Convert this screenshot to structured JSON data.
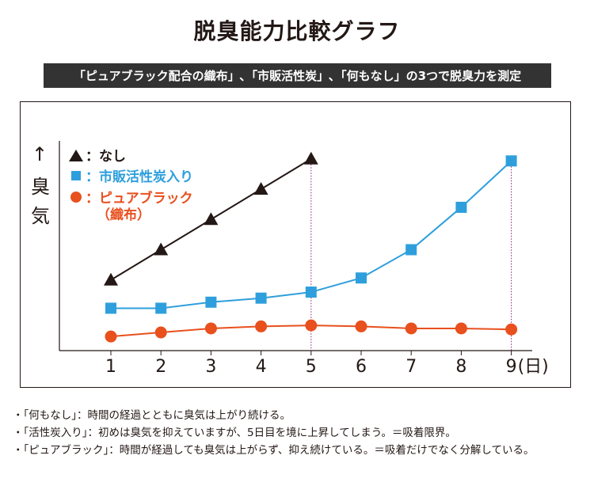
{
  "title": "脱臭能力比較グラフ",
  "subtitle": "「ピュアブラック配合の織布」､「市販活性炭」､「何もなし」の3つで脱臭力を測定",
  "chart_data": {
    "type": "line",
    "x": [
      1,
      2,
      3,
      4,
      5,
      6,
      7,
      8,
      9
    ],
    "xlabel": "(日)",
    "ylabel": "臭気",
    "y_arrow": "↑",
    "y_units": "relative (no scale printed)",
    "ylim": [
      0,
      100
    ],
    "grid": false,
    "legend_position": "top-left",
    "series": [
      {
        "name": "：なし",
        "color": "#231815",
        "marker": "triangle",
        "x": [
          1,
          2,
          3,
          4,
          5
        ],
        "values": [
          35,
          50,
          65,
          80,
          95
        ]
      },
      {
        "name": "：市販活性炭入り",
        "color": "#2e9fdc",
        "marker": "square",
        "x": [
          1,
          2,
          3,
          4,
          5,
          6,
          7,
          8,
          9
        ],
        "values": [
          21,
          21,
          24,
          26,
          29,
          36,
          50,
          71,
          94
        ]
      },
      {
        "name": "：ピュアブラック",
        "name_line2": "（織布）",
        "color": "#e8501e",
        "marker": "circle",
        "x": [
          1,
          2,
          3,
          4,
          5,
          6,
          7,
          8,
          9
        ],
        "values": [
          7,
          9,
          11,
          12,
          12.5,
          12,
          11,
          11,
          10.5
        ]
      }
    ],
    "markers_drop_lines_at": [
      5,
      9
    ]
  },
  "notes": [
    "・「何もなし」：時間の経過とともに臭気は上がり続ける。",
    "・「活性炭入り」：初めは臭気を抑えていますが、5日目を境に上昇してしまう。＝吸着限界。",
    "・「ピュアブラック」：時間が経過しても臭気は上がらず、抑え続けている。＝吸着だけでなく分解している。"
  ]
}
